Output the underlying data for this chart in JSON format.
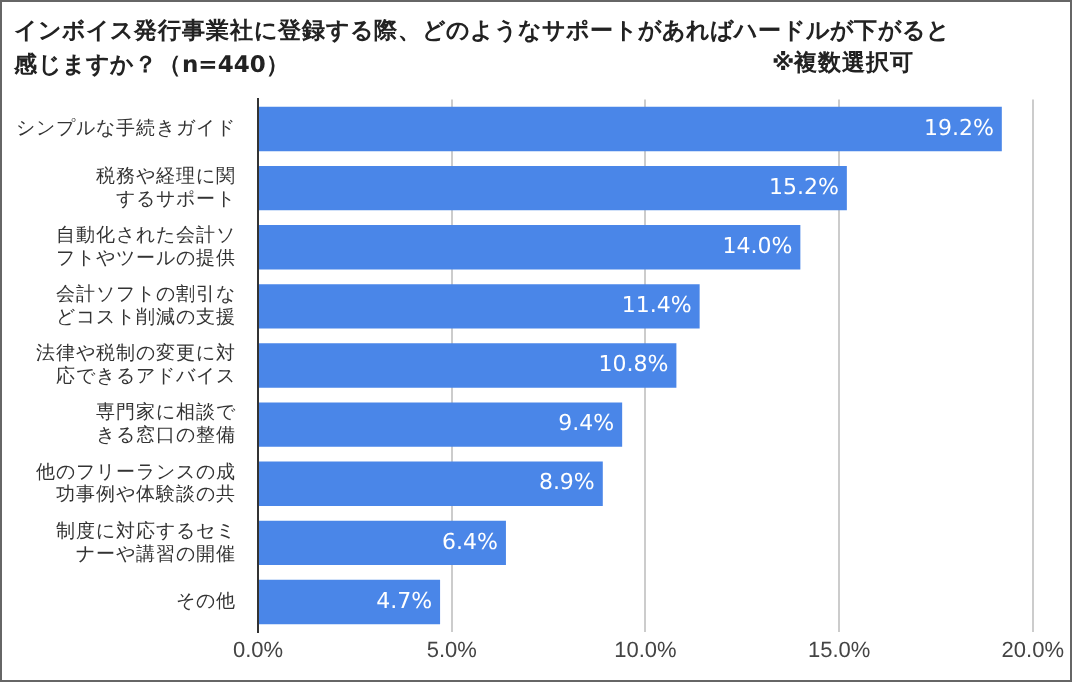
{
  "chart_data": {
    "type": "bar",
    "orientation": "horizontal",
    "title": "インボイス発行事業社に登録する際、どのようなサポートがあればハードルが下がると感じますか？（n=440）",
    "subtitle": "※複数選択可",
    "categories": [
      "シンプルな手続きガイド",
      "税務や経理に関するサポート",
      "自動化された会計ソフトやツールの提供",
      "会計ソフトの割引などコスト削減の支援",
      "法律や税制の変更に対応できるアドバイス",
      "専門家に相談できる窓口の整備",
      "他のフリーランスの成功事例や体験談の共",
      "制度に対応するセミナーや講習の開催",
      "その他"
    ],
    "values": [
      19.2,
      15.2,
      14.0,
      11.4,
      10.8,
      9.4,
      8.9,
      6.4,
      4.7
    ],
    "value_labels": [
      "19.2%",
      "15.2%",
      "14.0%",
      "11.4%",
      "10.8%",
      "9.4%",
      "8.9%",
      "6.4%",
      "4.7%"
    ],
    "color": "#4a86e8",
    "xlim": [
      0,
      20
    ],
    "xticks": [
      {
        "value": 0,
        "label": "0.0%"
      },
      {
        "value": 5,
        "label": "5.0%"
      },
      {
        "value": 10,
        "label": "10.0%"
      },
      {
        "value": 15,
        "label": "15.0%"
      },
      {
        "value": 20,
        "label": "20.0%"
      }
    ],
    "grid": "x",
    "legend": false
  }
}
